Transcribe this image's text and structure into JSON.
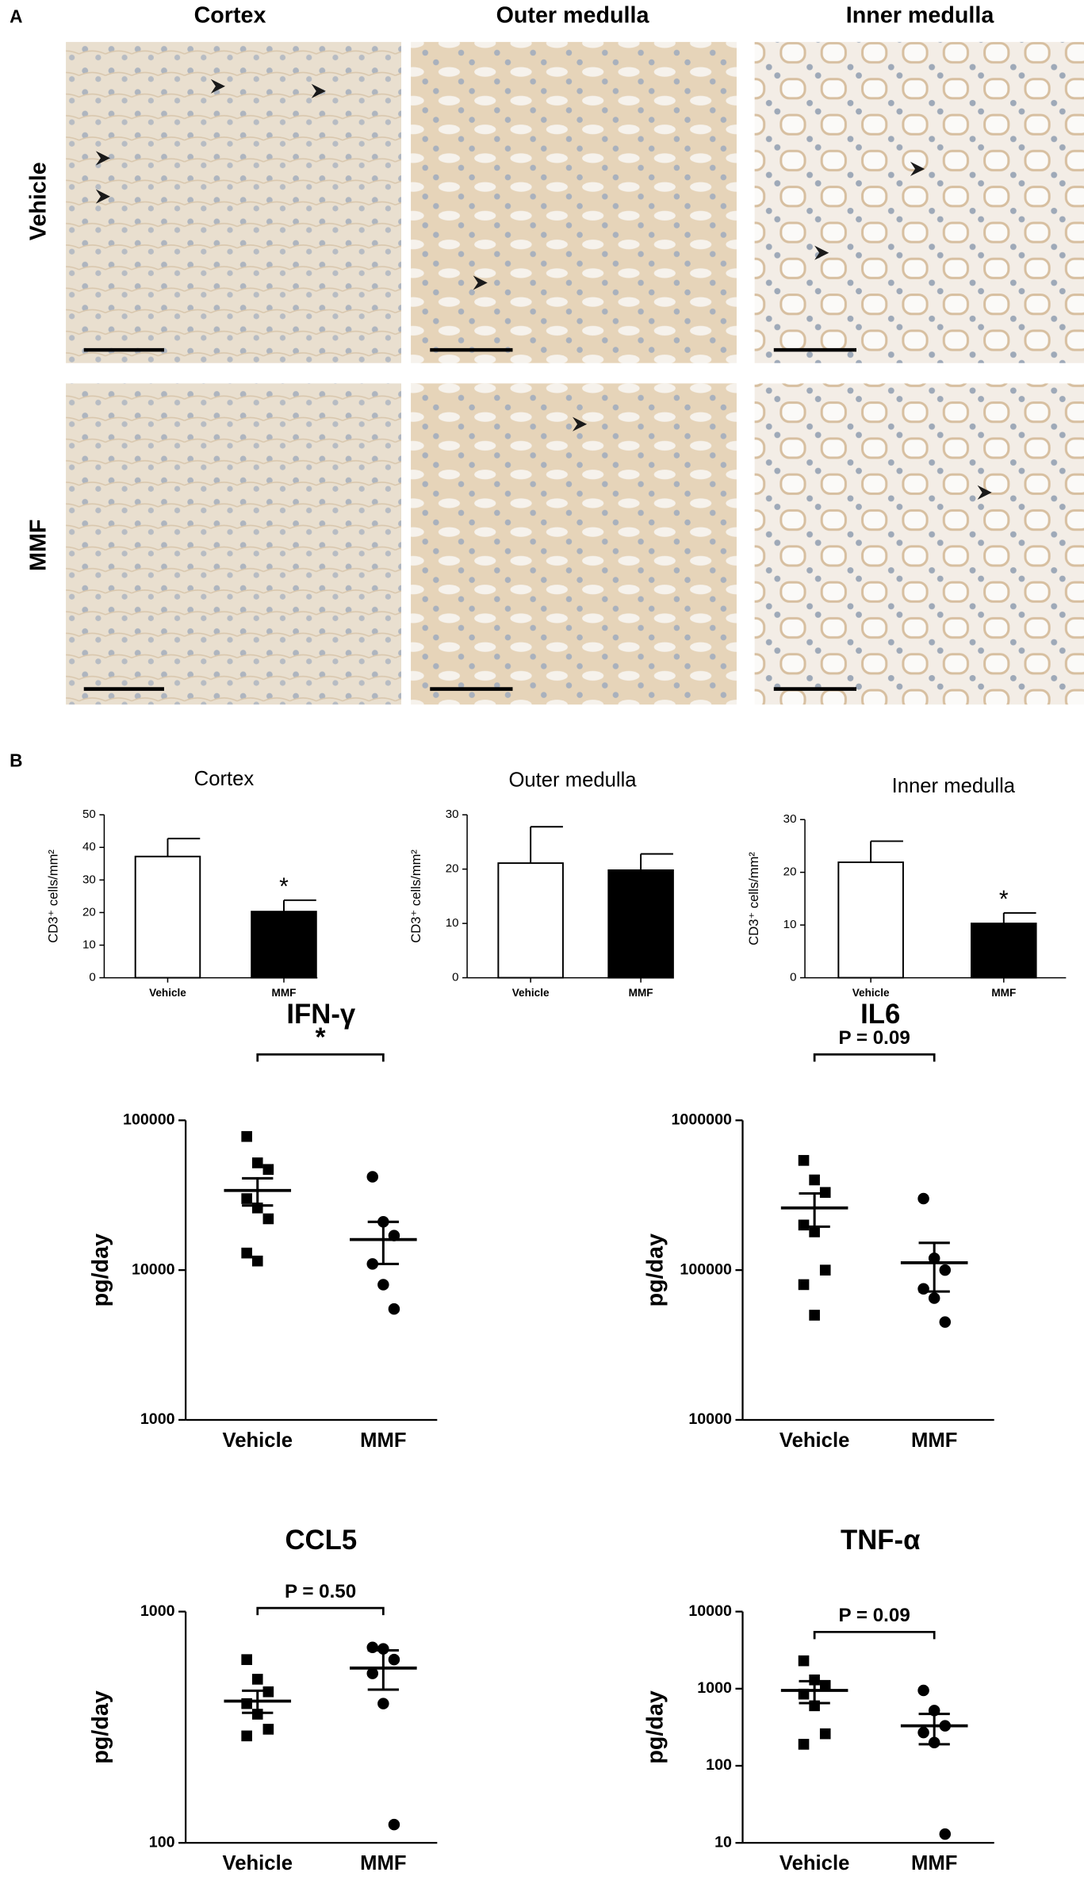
{
  "panel_a": {
    "label": "A",
    "columns": [
      "Cortex",
      "Outer medulla",
      "Inner medulla"
    ],
    "rows": [
      "Vehicle",
      "MMF"
    ]
  },
  "panel_b": {
    "label": "B"
  },
  "chart_data": [
    {
      "type": "bar",
      "title": "Cortex",
      "y_label": "CD3⁺ cells/mm²",
      "categories": [
        "Vehicle",
        "MMF"
      ],
      "values": [
        37.2,
        20.3
      ],
      "errors": [
        5.5,
        3.5
      ],
      "colors": [
        "#ffffff",
        "#000000"
      ],
      "value_annotations": [
        null,
        "*"
      ],
      "ylim": [
        0,
        50
      ],
      "yticks": [
        0,
        10,
        20,
        30,
        40,
        50
      ]
    },
    {
      "type": "bar",
      "title": "Outer medulla",
      "y_label": "CD3⁺ cells/mm²",
      "categories": [
        "Vehicle",
        "MMF"
      ],
      "values": [
        21.1,
        19.8
      ],
      "errors": [
        6.7,
        3.0
      ],
      "colors": [
        "#ffffff",
        "#000000"
      ],
      "ylim": [
        0,
        30
      ],
      "yticks": [
        0,
        10,
        20,
        30
      ]
    },
    {
      "type": "bar",
      "title": "Inner medulla",
      "y_label": "CD3⁺ cells/mm²",
      "categories": [
        "Vehicle",
        "MMF"
      ],
      "values": [
        21.9,
        10.3
      ],
      "errors": [
        4.0,
        2.0
      ],
      "colors": [
        "#ffffff",
        "#000000"
      ],
      "value_annotations": [
        null,
        "*"
      ],
      "ylim": [
        0,
        30
      ],
      "yticks": [
        0,
        10,
        20,
        30
      ]
    },
    {
      "type": "strip",
      "title": "IFN-γ",
      "y_label": "pg/day",
      "log_y": true,
      "ylim": [
        1000,
        100000
      ],
      "yticks": [
        1000,
        10000,
        100000
      ],
      "comparison": "*",
      "color": "#000000",
      "series": [
        {
          "name": "Vehicle",
          "marker": "square",
          "values": [
            78000,
            52000,
            47000,
            30000,
            26000,
            22000,
            13000,
            11500
          ],
          "mean": 34000,
          "error": 7000
        },
        {
          "name": "MMF",
          "marker": "circle",
          "values": [
            42000,
            21000,
            17000,
            11000,
            8000,
            5500
          ],
          "mean": 16000,
          "error": 5000
        }
      ]
    },
    {
      "type": "strip",
      "title": "IL6",
      "y_label": "pg/day",
      "log_y": true,
      "ylim": [
        10000,
        1000000
      ],
      "yticks": [
        10000,
        100000,
        1000000
      ],
      "comparison": "P = 0.09",
      "color": "#000000",
      "series": [
        {
          "name": "Vehicle",
          "marker": "square",
          "values": [
            540000,
            400000,
            330000,
            200000,
            180000,
            100000,
            80000,
            50000
          ],
          "mean": 260000,
          "error": 65000
        },
        {
          "name": "MMF",
          "marker": "circle",
          "values": [
            300000,
            120000,
            100000,
            75000,
            65000,
            45000
          ],
          "mean": 112000,
          "error": 40000
        }
      ]
    },
    {
      "type": "strip",
      "title": "CCL5",
      "y_label": "pg/day",
      "log_y": true,
      "ylim": [
        100,
        1000
      ],
      "yticks": [
        100,
        1000
      ],
      "comparison": "P = 0.50",
      "color": "#000000",
      "series": [
        {
          "name": "Vehicle",
          "marker": "square",
          "values": [
            620,
            510,
            450,
            400,
            360,
            310,
            290
          ],
          "mean": 410,
          "error": 45
        },
        {
          "name": "MMF",
          "marker": "circle",
          "values": [
            700,
            690,
            620,
            540,
            400,
            120
          ],
          "mean": 570,
          "error": 110
        }
      ]
    },
    {
      "type": "strip",
      "title": "TNF-α",
      "y_label": "pg/day",
      "log_y": true,
      "ylim": [
        10,
        10000
      ],
      "yticks": [
        10,
        100,
        1000,
        10000
      ],
      "comparison": "P = 0.09",
      "color": "#000000",
      "series": [
        {
          "name": "Vehicle",
          "marker": "square",
          "values": [
            2300,
            1300,
            1100,
            850,
            600,
            260,
            190
          ],
          "mean": 950,
          "error": 300
        },
        {
          "name": "MMF",
          "marker": "circle",
          "values": [
            950,
            520,
            330,
            270,
            200,
            13
          ],
          "mean": 330,
          "error": 140
        }
      ]
    }
  ]
}
